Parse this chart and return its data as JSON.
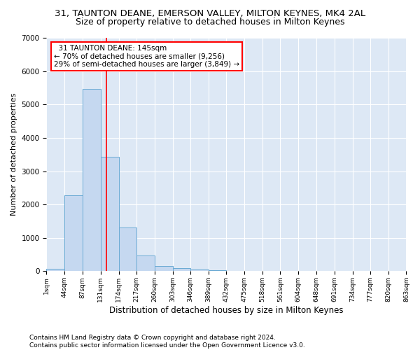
{
  "title": "31, TAUNTON DEANE, EMERSON VALLEY, MILTON KEYNES, MK4 2AL",
  "subtitle": "Size of property relative to detached houses in Milton Keynes",
  "xlabel": "Distribution of detached houses by size in Milton Keynes",
  "ylabel": "Number of detached properties",
  "bar_color": "#c5d8f0",
  "bar_edge_color": "#6aaad4",
  "annotation_line_color": "red",
  "annotation_box_color": "red",
  "annotation_text": "  31 TAUNTON DEANE: 145sqm\n← 70% of detached houses are smaller (9,256)\n29% of semi-detached houses are larger (3,849) →",
  "property_size_sqm": 145,
  "bins": [
    1,
    44,
    87,
    131,
    174,
    217,
    260,
    303,
    346,
    389,
    432,
    475,
    518,
    561,
    604,
    648,
    691,
    734,
    777,
    820,
    863
  ],
  "counts": [
    75,
    2280,
    5460,
    3440,
    1310,
    470,
    165,
    90,
    60,
    30,
    0,
    0,
    0,
    0,
    0,
    0,
    0,
    0,
    0,
    0
  ],
  "ylim": [
    0,
    7000
  ],
  "yticks": [
    0,
    1000,
    2000,
    3000,
    4000,
    5000,
    6000,
    7000
  ],
  "footer_text": "Contains HM Land Registry data © Crown copyright and database right 2024.\nContains public sector information licensed under the Open Government Licence v3.0.",
  "bg_color": "#dde8f5",
  "title_fontsize": 9.5,
  "subtitle_fontsize": 9,
  "annot_fontsize": 7.5,
  "footer_fontsize": 6.5,
  "ylabel_fontsize": 8,
  "xlabel_fontsize": 8.5
}
